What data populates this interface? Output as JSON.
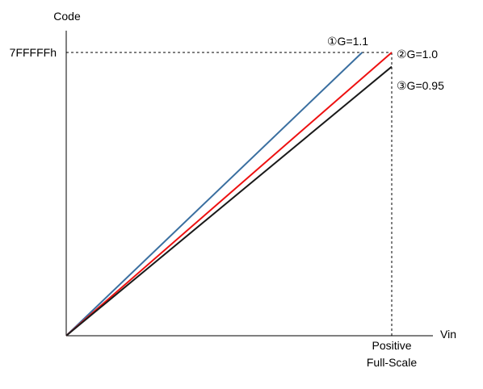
{
  "chart_data": {
    "type": "line",
    "title": "",
    "xlabel": "Vin",
    "ylabel": "Code",
    "x_tick_label": [
      "Positive",
      "Full-Scale"
    ],
    "y_tick_label": "7FFFFFh",
    "xlim": [
      0,
      1
    ],
    "ylim": [
      0,
      1
    ],
    "series": [
      {
        "name": "①G=1.1",
        "gain": 1.1,
        "x": [
          0,
          0.9091
        ],
        "y": [
          0,
          1.0
        ],
        "color": "#3a6fa0"
      },
      {
        "name": "②G=1.0",
        "gain": 1.0,
        "x": [
          0,
          1.0
        ],
        "y": [
          0,
          1.0
        ],
        "color": "#ee1111"
      },
      {
        "name": "③G=0.95",
        "gain": 0.95,
        "x": [
          0,
          1.0
        ],
        "y": [
          0,
          0.95
        ],
        "color": "#1a1a1a"
      }
    ]
  }
}
